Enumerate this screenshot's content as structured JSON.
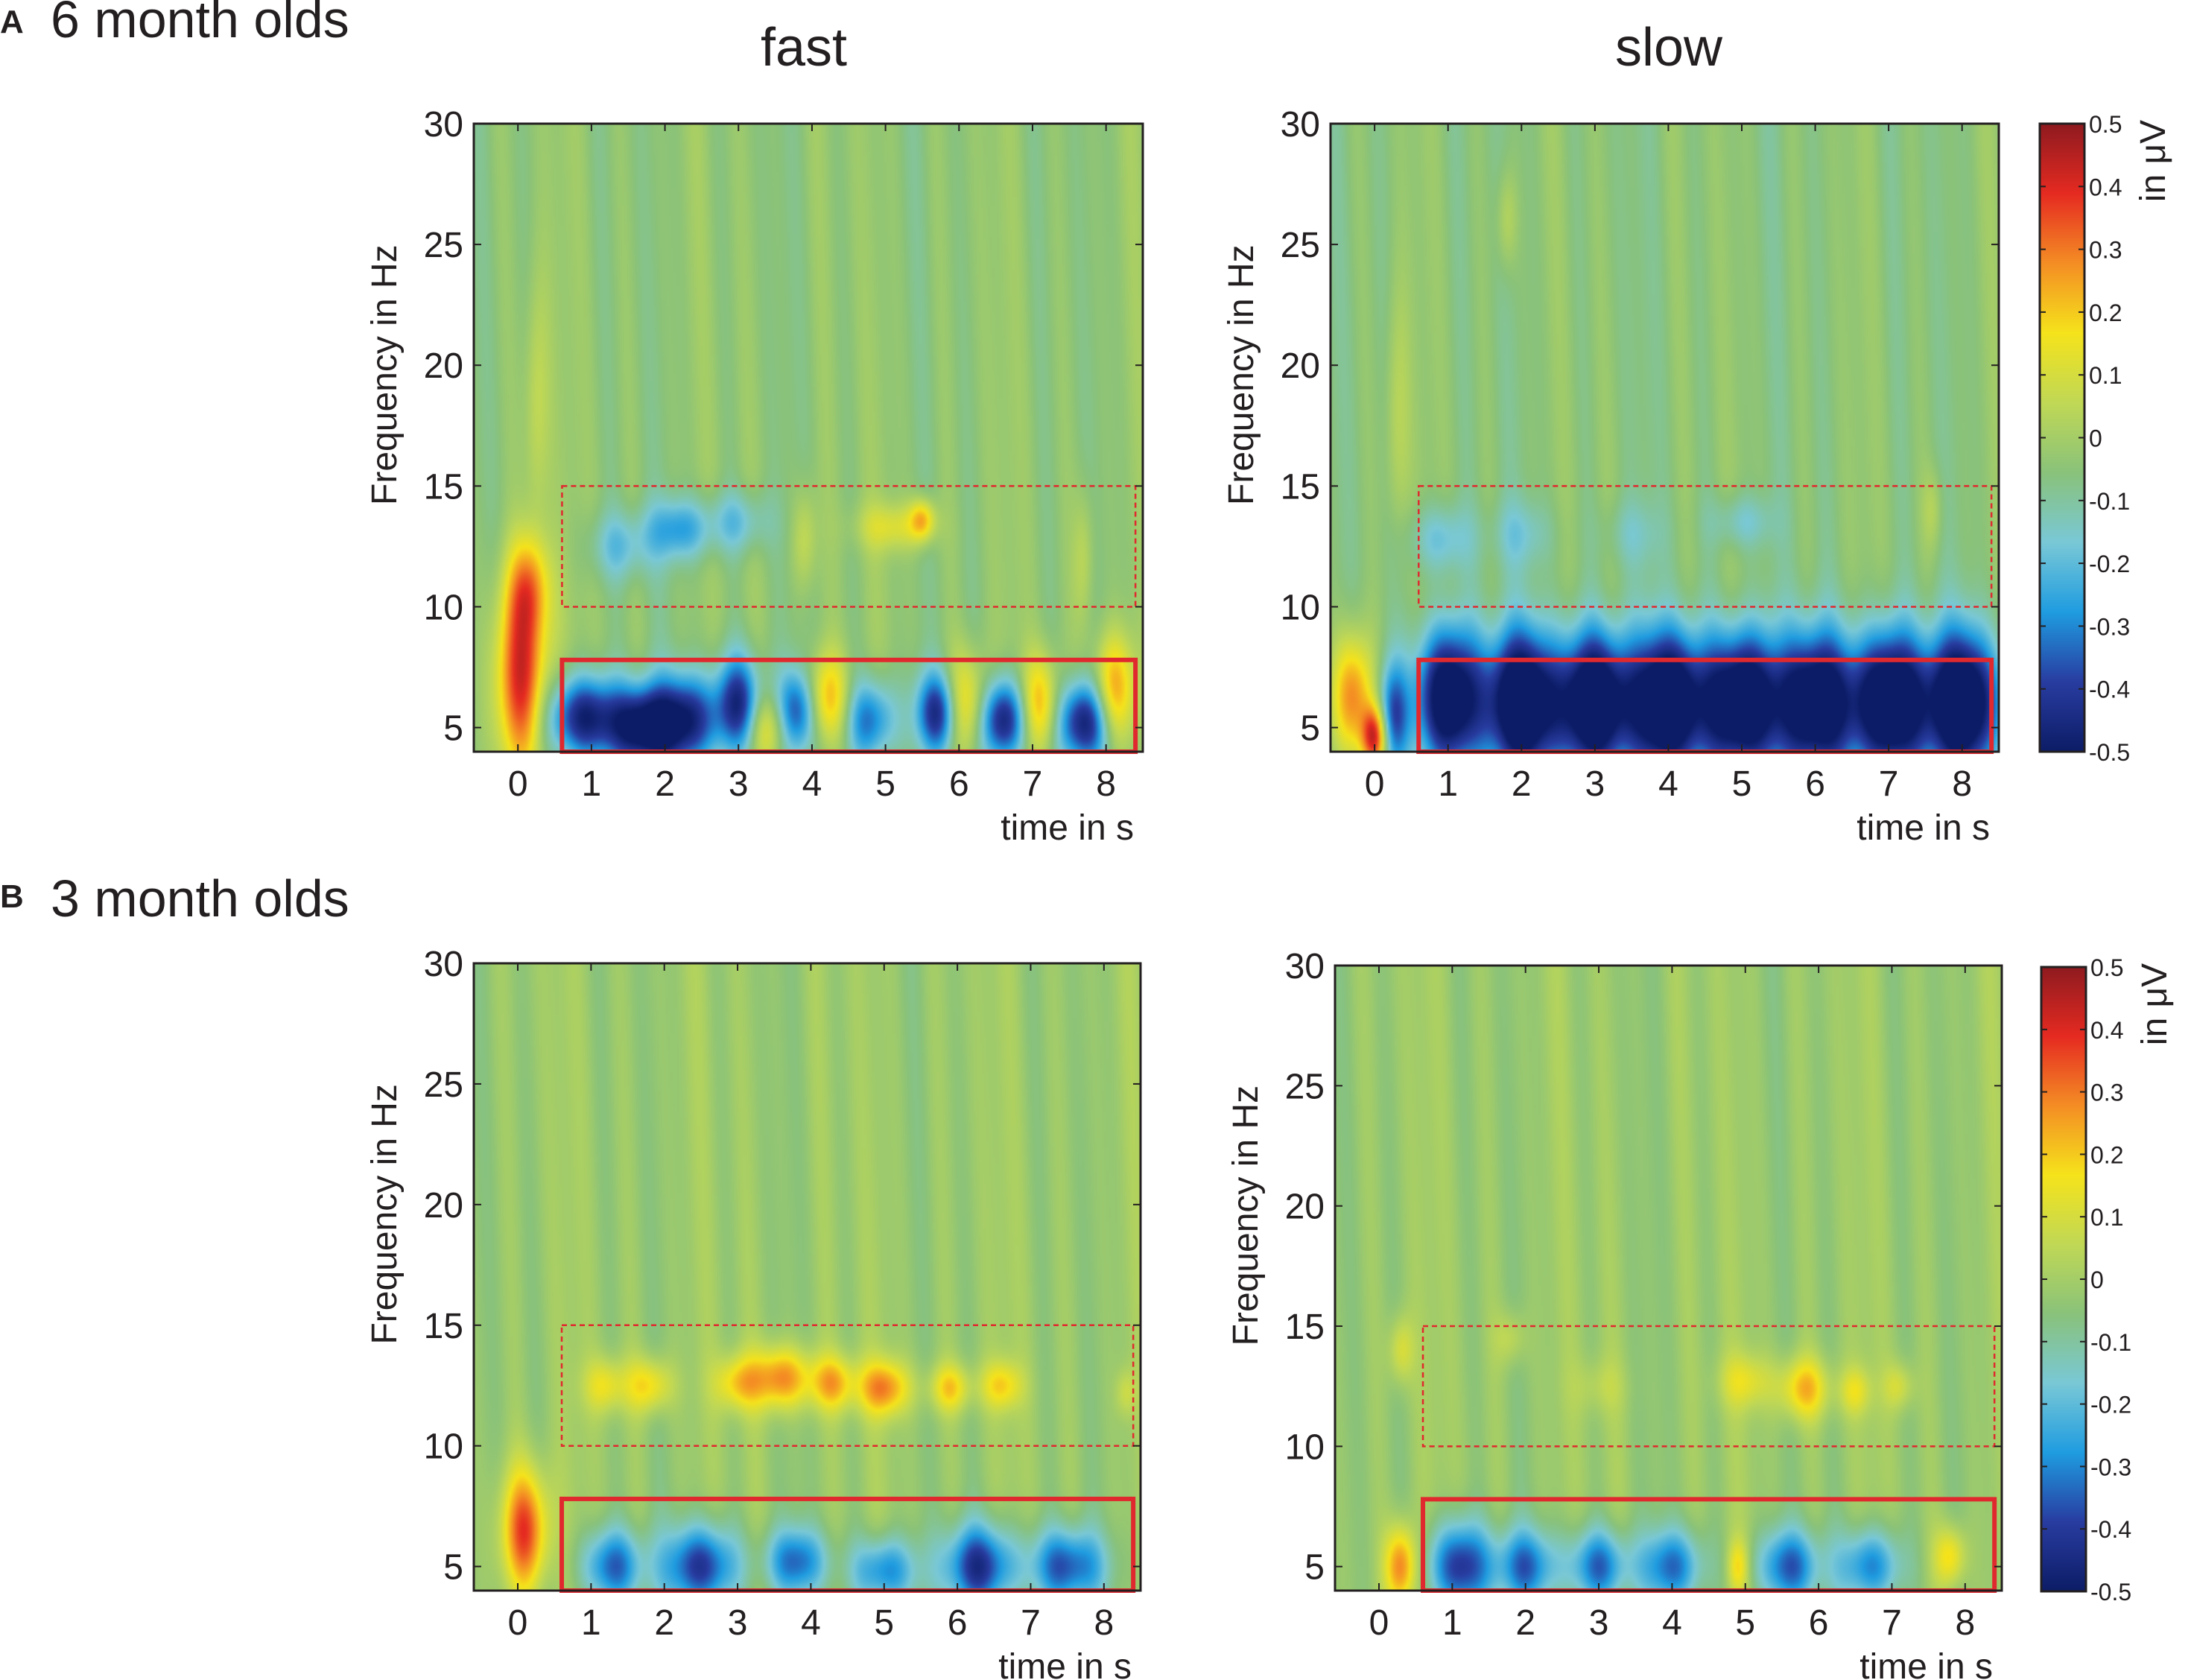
{
  "figure": {
    "panel_a": {
      "letter": "A",
      "title": "6 month olds"
    },
    "panel_b": {
      "letter": "B",
      "title": "3 month olds"
    },
    "column_titles": {
      "fast": "fast",
      "slow": "slow"
    }
  },
  "chart_data": [
    {
      "id": "A-fast",
      "type": "heatmap",
      "panel": "A",
      "group": "6 month olds",
      "condition": "fast",
      "xlabel": "time in s",
      "ylabel": "Frequency in Hz",
      "xlim": [
        -0.6,
        8.5
      ],
      "ylim": [
        4,
        30
      ],
      "xticks": [
        0,
        1,
        2,
        3,
        4,
        5,
        6,
        7,
        8
      ],
      "yticks": [
        5,
        10,
        15,
        20,
        25,
        30
      ],
      "clim": [
        -0.5,
        0.5
      ],
      "background_value": -0.04,
      "blobs": [
        {
          "t": 0.05,
          "f": 7.0,
          "st": 0.25,
          "sf": 2.8,
          "v": 0.45
        },
        {
          "t": 0.15,
          "f": 10.8,
          "st": 0.2,
          "sf": 1.5,
          "v": 0.25
        },
        {
          "t": 0.25,
          "f": 18.0,
          "st": 0.12,
          "sf": 4.0,
          "v": 0.12
        },
        {
          "t": 0.9,
          "f": 5.4,
          "st": 0.35,
          "sf": 1.2,
          "v": -0.45
        },
        {
          "t": 1.7,
          "f": 5.0,
          "st": 0.3,
          "sf": 1.2,
          "v": -0.5
        },
        {
          "t": 2.3,
          "f": 5.3,
          "st": 0.3,
          "sf": 1.3,
          "v": -0.42
        },
        {
          "t": 3.0,
          "f": 6.0,
          "st": 0.22,
          "sf": 1.4,
          "v": -0.4
        },
        {
          "t": 3.4,
          "f": 5.0,
          "st": 0.2,
          "sf": 1.0,
          "v": 0.2
        },
        {
          "t": 3.8,
          "f": 5.7,
          "st": 0.2,
          "sf": 1.2,
          "v": -0.35
        },
        {
          "t": 4.2,
          "f": 6.2,
          "st": 0.22,
          "sf": 1.3,
          "v": 0.28
        },
        {
          "t": 4.8,
          "f": 5.3,
          "st": 0.25,
          "sf": 1.2,
          "v": -0.3
        },
        {
          "t": 5.7,
          "f": 5.6,
          "st": 0.2,
          "sf": 1.2,
          "v": -0.4
        },
        {
          "t": 6.1,
          "f": 6.0,
          "st": 0.2,
          "sf": 1.5,
          "v": 0.25
        },
        {
          "t": 6.6,
          "f": 5.3,
          "st": 0.22,
          "sf": 1.2,
          "v": -0.45
        },
        {
          "t": 7.1,
          "f": 6.0,
          "st": 0.18,
          "sf": 1.4,
          "v": 0.28
        },
        {
          "t": 7.7,
          "f": 5.2,
          "st": 0.25,
          "sf": 1.2,
          "v": -0.45
        },
        {
          "t": 8.1,
          "f": 6.5,
          "st": 0.2,
          "sf": 1.6,
          "v": 0.32
        },
        {
          "t": 2.2,
          "f": 13.2,
          "st": 0.3,
          "sf": 0.9,
          "v": -0.22
        },
        {
          "t": 1.4,
          "f": 12.5,
          "st": 0.3,
          "sf": 1.0,
          "v": -0.15
        },
        {
          "t": 3.0,
          "f": 13.5,
          "st": 0.3,
          "sf": 0.9,
          "v": -0.15
        },
        {
          "t": 3.9,
          "f": 12.8,
          "st": 0.12,
          "sf": 1.5,
          "v": 0.12
        },
        {
          "t": 5.1,
          "f": 13.3,
          "st": 0.35,
          "sf": 0.7,
          "v": 0.15
        },
        {
          "t": 5.5,
          "f": 13.6,
          "st": 0.12,
          "sf": 0.6,
          "v": 0.25
        },
        {
          "t": 7.7,
          "f": 12.0,
          "st": 0.1,
          "sf": 2.0,
          "v": 0.1
        }
      ],
      "rois": [
        {
          "style": "solid",
          "tmin": 0.6,
          "tmax": 8.4,
          "fmin": 4,
          "fmax": 7.8
        },
        {
          "style": "dashed",
          "tmin": 0.6,
          "tmax": 8.4,
          "fmin": 10,
          "fmax": 15
        }
      ]
    },
    {
      "id": "A-slow",
      "type": "heatmap",
      "panel": "A",
      "group": "6 month olds",
      "condition": "slow",
      "xlabel": "time in s",
      "ylabel": "Frequency in Hz",
      "xlim": [
        -0.6,
        8.5
      ],
      "ylim": [
        4,
        30
      ],
      "xticks": [
        0,
        1,
        2,
        3,
        4,
        5,
        6,
        7,
        8
      ],
      "yticks": [
        5,
        10,
        15,
        20,
        25,
        30
      ],
      "clim": [
        -0.5,
        0.5
      ],
      "background_value": -0.05,
      "blobs": [
        {
          "t": -0.3,
          "f": 6.3,
          "st": 0.2,
          "sf": 1.8,
          "v": 0.35
        },
        {
          "t": 0.0,
          "f": 4.6,
          "st": 0.12,
          "sf": 0.9,
          "v": 0.45
        },
        {
          "t": 0.25,
          "f": 5.5,
          "st": 0.15,
          "sf": 1.5,
          "v": -0.3
        },
        {
          "t": 0.3,
          "f": 17.5,
          "st": 0.12,
          "sf": 4.0,
          "v": 0.1
        },
        {
          "t": 1.0,
          "f": 6.2,
          "st": 0.3,
          "sf": 2.0,
          "v": -0.6
        },
        {
          "t": 2.0,
          "f": 6.0,
          "st": 0.35,
          "sf": 2.0,
          "v": -0.65
        },
        {
          "t": 3.0,
          "f": 6.0,
          "st": 0.35,
          "sf": 2.0,
          "v": -0.65
        },
        {
          "t": 4.0,
          "f": 6.0,
          "st": 0.35,
          "sf": 2.0,
          "v": -0.65
        },
        {
          "t": 5.0,
          "f": 6.0,
          "st": 0.35,
          "sf": 2.0,
          "v": -0.65
        },
        {
          "t": 6.0,
          "f": 6.0,
          "st": 0.35,
          "sf": 2.0,
          "v": -0.6
        },
        {
          "t": 7.0,
          "f": 6.0,
          "st": 0.35,
          "sf": 2.0,
          "v": -0.65
        },
        {
          "t": 8.0,
          "f": 6.0,
          "st": 0.35,
          "sf": 2.0,
          "v": -0.65
        },
        {
          "t": 0.9,
          "f": 12.8,
          "st": 0.3,
          "sf": 1.0,
          "v": -0.15
        },
        {
          "t": 2.0,
          "f": 13.0,
          "st": 0.3,
          "sf": 1.0,
          "v": -0.1
        },
        {
          "t": 5.0,
          "f": 13.5,
          "st": 0.3,
          "sf": 0.8,
          "v": -0.12
        },
        {
          "t": 3.5,
          "f": 13.0,
          "st": 0.3,
          "sf": 1.0,
          "v": -0.08
        },
        {
          "t": 1.8,
          "f": 26.0,
          "st": 0.1,
          "sf": 1.5,
          "v": 0.1
        },
        {
          "t": 7.6,
          "f": 14.0,
          "st": 0.1,
          "sf": 1.2,
          "v": 0.08
        }
      ],
      "rois": [
        {
          "style": "solid",
          "tmin": 0.6,
          "tmax": 8.4,
          "fmin": 4,
          "fmax": 7.8
        },
        {
          "style": "dashed",
          "tmin": 0.6,
          "tmax": 8.4,
          "fmin": 10,
          "fmax": 15
        }
      ]
    },
    {
      "id": "B-fast",
      "type": "heatmap",
      "panel": "B",
      "group": "3 month olds",
      "condition": "fast",
      "xlabel": "time in s",
      "ylabel": "Frequency in Hz",
      "xlim": [
        -0.6,
        8.5
      ],
      "ylim": [
        4,
        30
      ],
      "xticks": [
        0,
        1,
        2,
        3,
        4,
        5,
        6,
        7,
        8
      ],
      "yticks": [
        5,
        10,
        15,
        20,
        25,
        30
      ],
      "clim": [
        -0.5,
        0.5
      ],
      "background_value": -0.02,
      "blobs": [
        {
          "t": 0.1,
          "f": 6.5,
          "st": 0.22,
          "sf": 1.8,
          "v": 0.4
        },
        {
          "t": 1.3,
          "f": 5.0,
          "st": 0.3,
          "sf": 1.1,
          "v": -0.32
        },
        {
          "t": 2.5,
          "f": 5.0,
          "st": 0.35,
          "sf": 1.2,
          "v": -0.4
        },
        {
          "t": 3.8,
          "f": 5.2,
          "st": 0.3,
          "sf": 1.0,
          "v": -0.3
        },
        {
          "t": 5.0,
          "f": 4.8,
          "st": 0.3,
          "sf": 1.0,
          "v": -0.3
        },
        {
          "t": 6.3,
          "f": 5.0,
          "st": 0.35,
          "sf": 1.2,
          "v": -0.4
        },
        {
          "t": 7.5,
          "f": 5.0,
          "st": 0.35,
          "sf": 1.1,
          "v": -0.35
        },
        {
          "t": 1.2,
          "f": 12.5,
          "st": 0.2,
          "sf": 0.8,
          "v": 0.18
        },
        {
          "t": 1.8,
          "f": 12.5,
          "st": 0.22,
          "sf": 0.8,
          "v": 0.22
        },
        {
          "t": 3.0,
          "f": 12.6,
          "st": 0.22,
          "sf": 0.8,
          "v": 0.22
        },
        {
          "t": 3.6,
          "f": 12.8,
          "st": 0.28,
          "sf": 0.9,
          "v": 0.32
        },
        {
          "t": 4.3,
          "f": 12.6,
          "st": 0.22,
          "sf": 0.8,
          "v": 0.25
        },
        {
          "t": 5.0,
          "f": 12.4,
          "st": 0.25,
          "sf": 0.8,
          "v": 0.3
        },
        {
          "t": 5.9,
          "f": 12.4,
          "st": 0.2,
          "sf": 0.7,
          "v": 0.22
        },
        {
          "t": 6.6,
          "f": 12.5,
          "st": 0.2,
          "sf": 0.7,
          "v": 0.2
        },
        {
          "t": 8.3,
          "f": 12.2,
          "st": 0.1,
          "sf": 0.7,
          "v": 0.1
        }
      ],
      "rois": [
        {
          "style": "solid",
          "tmin": 0.6,
          "tmax": 8.4,
          "fmin": 4,
          "fmax": 7.8
        },
        {
          "style": "dashed",
          "tmin": 0.6,
          "tmax": 8.4,
          "fmin": 10,
          "fmax": 15
        }
      ]
    },
    {
      "id": "B-slow",
      "type": "heatmap",
      "panel": "B",
      "group": "3 month olds",
      "condition": "slow",
      "xlabel": "time in s",
      "ylabel": "Frequency in Hz",
      "xlim": [
        -0.6,
        8.5
      ],
      "ylim": [
        4,
        30
      ],
      "xticks": [
        0,
        1,
        2,
        3,
        4,
        5,
        6,
        7,
        8
      ],
      "yticks": [
        5,
        10,
        15,
        20,
        25,
        30
      ],
      "clim": [
        -0.5,
        0.5
      ],
      "background_value": -0.02,
      "blobs": [
        {
          "t": 0.3,
          "f": 5.0,
          "st": 0.15,
          "sf": 1.2,
          "v": 0.35
        },
        {
          "t": 0.3,
          "f": 14.0,
          "st": 0.12,
          "sf": 1.0,
          "v": 0.15
        },
        {
          "t": 1.1,
          "f": 5.0,
          "st": 0.3,
          "sf": 1.3,
          "v": -0.4
        },
        {
          "t": 2.0,
          "f": 5.0,
          "st": 0.3,
          "sf": 1.1,
          "v": -0.3
        },
        {
          "t": 3.0,
          "f": 5.0,
          "st": 0.3,
          "sf": 1.1,
          "v": -0.32
        },
        {
          "t": 4.0,
          "f": 5.0,
          "st": 0.3,
          "sf": 1.1,
          "v": -0.3
        },
        {
          "t": 5.6,
          "f": 5.0,
          "st": 0.3,
          "sf": 1.1,
          "v": -0.32
        },
        {
          "t": 6.7,
          "f": 5.0,
          "st": 0.3,
          "sf": 1.1,
          "v": -0.3
        },
        {
          "t": 7.8,
          "f": 5.4,
          "st": 0.15,
          "sf": 0.9,
          "v": 0.22
        },
        {
          "t": 4.9,
          "f": 5.0,
          "st": 0.1,
          "sf": 0.8,
          "v": 0.18
        },
        {
          "t": 1.8,
          "f": 14.5,
          "st": 0.15,
          "sf": 0.8,
          "v": 0.1
        },
        {
          "t": 5.0,
          "f": 12.7,
          "st": 0.25,
          "sf": 0.8,
          "v": 0.15
        },
        {
          "t": 5.8,
          "f": 12.4,
          "st": 0.25,
          "sf": 0.9,
          "v": 0.25
        },
        {
          "t": 6.5,
          "f": 12.3,
          "st": 0.15,
          "sf": 0.7,
          "v": 0.15
        },
        {
          "t": 7.1,
          "f": 12.5,
          "st": 0.15,
          "sf": 0.7,
          "v": 0.13
        },
        {
          "t": 3.0,
          "f": 12.5,
          "st": 0.25,
          "sf": 0.8,
          "v": 0.07
        }
      ],
      "rois": [
        {
          "style": "solid",
          "tmin": 0.6,
          "tmax": 8.4,
          "fmin": 4,
          "fmax": 7.8
        },
        {
          "style": "dashed",
          "tmin": 0.6,
          "tmax": 8.4,
          "fmin": 10,
          "fmax": 15
        }
      ]
    }
  ],
  "colorbar": {
    "label": "in μV",
    "min": -0.5,
    "max": 0.5,
    "ticks": [
      0.5,
      0.4,
      0.3,
      0.2,
      0.1,
      0,
      -0.1,
      -0.2,
      -0.3,
      -0.4,
      -0.5
    ],
    "colormap": "jet",
    "colormap_stops": [
      "#0c1c66",
      "#283ca0",
      "#1f9ce0",
      "#79c8d6",
      "#89c27a",
      "#c0d855",
      "#f5e31b",
      "#f48d24",
      "#e52a21",
      "#8e1a1f"
    ]
  },
  "roi_color": "#e0292e"
}
